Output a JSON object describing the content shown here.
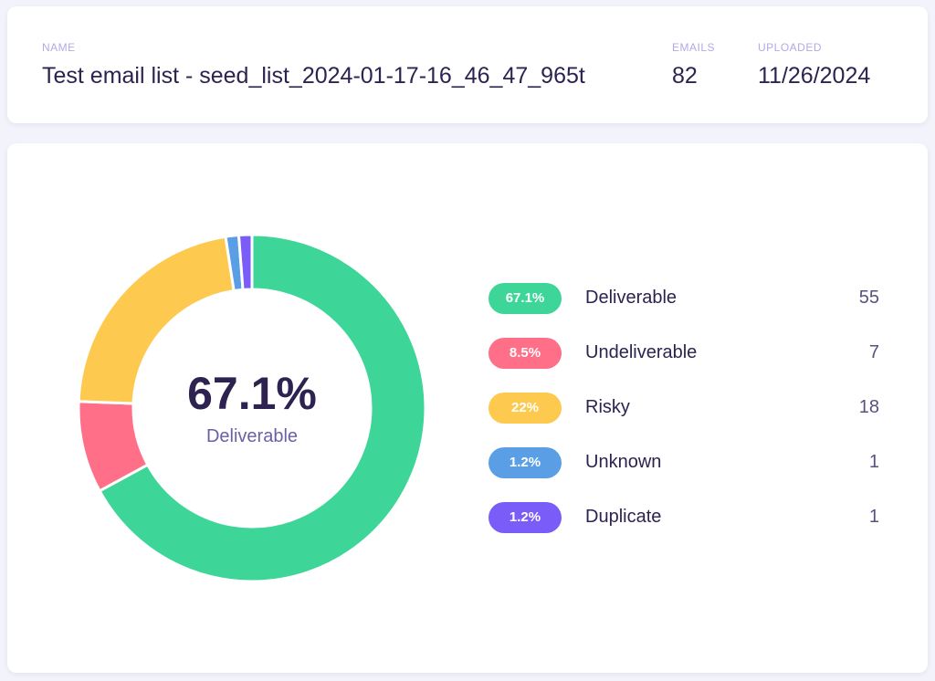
{
  "header": {
    "name_label": "NAME",
    "name": "Test email list - seed_list_2024-01-17-16_46_47_965t",
    "emails_label": "EMAILS",
    "emails": "82",
    "uploaded_label": "UPLOADED",
    "uploaded": "11/26/2024"
  },
  "chart_data": {
    "type": "pie",
    "center_value": "67.1%",
    "center_label": "Deliverable",
    "categories": [
      "Deliverable",
      "Undeliverable",
      "Risky",
      "Unknown",
      "Duplicate"
    ],
    "percent_labels": [
      "67.1%",
      "8.5%",
      "22%",
      "1.2%",
      "1.2%"
    ],
    "values": [
      55,
      7,
      18,
      1,
      1
    ],
    "colors": [
      "#3dd598",
      "#ff6f87",
      "#fdca4f",
      "#5a9fe6",
      "#7a5cf8"
    ]
  }
}
